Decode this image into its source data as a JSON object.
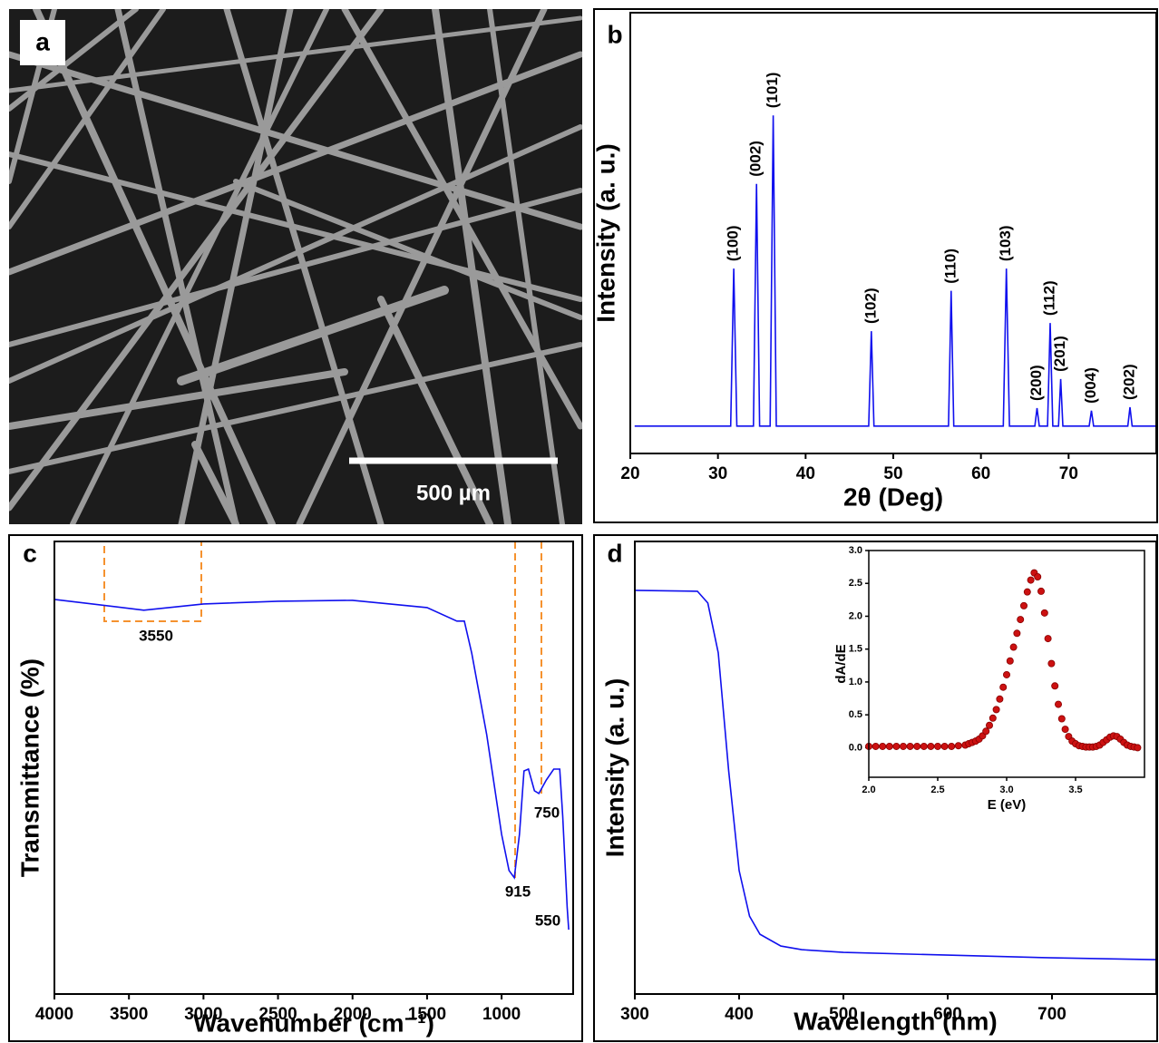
{
  "chart_data": [
    {
      "type": "image",
      "panel_label": "a",
      "scale_bar_label": "500 µm"
    },
    {
      "type": "line",
      "panel_label": "b",
      "xlabel": "2θ (Deg)",
      "ylabel": "Intensity (a. u.)",
      "color": "#1010ee",
      "x": [
        20.5,
        31.45,
        31.8,
        32.15,
        34.05,
        34.4,
        34.75,
        35.95,
        36.3,
        36.65,
        47.2,
        47.5,
        47.8,
        56.3,
        56.6,
        56.9,
        62.55,
        62.9,
        63.25,
        66.15,
        66.4,
        66.65,
        67.6,
        67.9,
        68.2,
        68.85,
        69.1,
        69.35,
        72.35,
        72.6,
        72.85,
        76.75,
        77.0,
        77.25,
        80
      ],
      "values": [
        6.4,
        6.4,
        43.2,
        6.4,
        6.4,
        63,
        6.4,
        6.4,
        79,
        6.4,
        6.4,
        28.6,
        6.4,
        6.4,
        38,
        6.4,
        6.4,
        43.2,
        6.4,
        6.4,
        10.6,
        6.4,
        6.4,
        30.5,
        6.4,
        6.4,
        17.4,
        6.4,
        6.4,
        10,
        6.4,
        6.4,
        10.8,
        6.4,
        6.4
      ],
      "xlim": [
        20,
        80
      ],
      "ylim": [
        0,
        103
      ],
      "xticks": [
        20,
        30,
        40,
        50,
        60,
        70
      ],
      "annotations": [
        {
          "text": "(100)",
          "x": 31.8
        },
        {
          "text": "(002)",
          "x": 34.4
        },
        {
          "text": "(101)",
          "x": 36.3
        },
        {
          "text": "(102)",
          "x": 47.5
        },
        {
          "text": "(110)",
          "x": 56.6
        },
        {
          "text": "(103)",
          "x": 62.9
        },
        {
          "text": "(200)",
          "x": 66.4
        },
        {
          "text": "(112)",
          "x": 67.9
        },
        {
          "text": "(201)",
          "x": 69.1
        },
        {
          "text": "(004)",
          "x": 72.6
        },
        {
          "text": "(202)",
          "x": 77.0
        }
      ]
    },
    {
      "type": "line",
      "panel_label": "c",
      "xlabel": "Wavenumber (cm⁻¹)",
      "ylabel": "Transmittance (%)",
      "color": "#1010ee",
      "x": [
        4000,
        3400,
        3000,
        2500,
        2000,
        1500,
        1300,
        1250,
        1200,
        1100,
        1000,
        950,
        915,
        880,
        850,
        820,
        780,
        750,
        700,
        650,
        610,
        590,
        560,
        550
      ],
      "values": [
        87.2,
        84.8,
        86.2,
        86.8,
        87,
        85.4,
        82.4,
        82.4,
        75.3,
        57.3,
        35.3,
        27.3,
        25.7,
        35.3,
        49.3,
        49.7,
        44.9,
        44.3,
        47.3,
        49.7,
        49.7,
        39.3,
        19.2,
        14.2
      ],
      "xlim": [
        4000,
        520
      ],
      "ylim": [
        0,
        100
      ],
      "xticks": [
        4000,
        3500,
        3000,
        2500,
        2000,
        1500,
        1000
      ],
      "annotations": [
        {
          "text": "3550"
        },
        {
          "text": "915"
        },
        {
          "text": "750"
        },
        {
          "text": "550"
        }
      ]
    },
    {
      "type": "line",
      "panel_label": "d",
      "xlabel": "Wavelength (nm)",
      "ylabel": "Intensity (a. u.)",
      "color": "#1010ee",
      "x": [
        300,
        360,
        370,
        380,
        390,
        400,
        410,
        420,
        440,
        460,
        500,
        600,
        700,
        800
      ],
      "values": [
        89.2,
        89,
        86.4,
        75.4,
        49.3,
        27.3,
        17.2,
        13.2,
        10.6,
        9.8,
        9.2,
        8.6,
        8,
        7.6
      ],
      "xlim": [
        300,
        800
      ],
      "ylim": [
        0,
        100
      ],
      "xticks": [
        300,
        400,
        500,
        600,
        700
      ],
      "inset": {
        "type": "scatter",
        "xlabel": "E (eV)",
        "ylabel": "dA/dE",
        "color": "#cc1111",
        "x": [
          2.0,
          2.05,
          2.1,
          2.15,
          2.2,
          2.25,
          2.3,
          2.35,
          2.4,
          2.45,
          2.5,
          2.55,
          2.6,
          2.65,
          2.7,
          2.725,
          2.75,
          2.775,
          2.8,
          2.825,
          2.85,
          2.875,
          2.9,
          2.925,
          2.95,
          2.975,
          3.0,
          3.025,
          3.05,
          3.075,
          3.1,
          3.125,
          3.15,
          3.175,
          3.2,
          3.225,
          3.25,
          3.275,
          3.3,
          3.325,
          3.35,
          3.375,
          3.4,
          3.425,
          3.45,
          3.475,
          3.5,
          3.525,
          3.55,
          3.575,
          3.6,
          3.625,
          3.65,
          3.675,
          3.7,
          3.725,
          3.75,
          3.775,
          3.8,
          3.825,
          3.85,
          3.875,
          3.9,
          3.925,
          3.95
        ],
        "values": [
          0.02,
          0.02,
          0.02,
          0.02,
          0.02,
          0.02,
          0.02,
          0.02,
          0.02,
          0.02,
          0.02,
          0.02,
          0.02,
          0.03,
          0.04,
          0.06,
          0.08,
          0.1,
          0.13,
          0.18,
          0.25,
          0.34,
          0.45,
          0.58,
          0.74,
          0.92,
          1.11,
          1.32,
          1.53,
          1.74,
          1.95,
          2.16,
          2.37,
          2.55,
          2.66,
          2.6,
          2.38,
          2.05,
          1.66,
          1.28,
          0.94,
          0.66,
          0.44,
          0.28,
          0.17,
          0.1,
          0.06,
          0.03,
          0.02,
          0.01,
          0.01,
          0.01,
          0.02,
          0.04,
          0.08,
          0.12,
          0.16,
          0.18,
          0.17,
          0.13,
          0.08,
          0.04,
          0.02,
          0.01,
          0.0
        ],
        "xlim": [
          2.0,
          4.0
        ],
        "ylim": [
          -0.45,
          3.0
        ],
        "xticks": [
          {
            "value": 2,
            "label": "2.0"
          },
          {
            "value": 2.5,
            "label": "2.5"
          },
          {
            "value": 3,
            "label": "3.0"
          },
          {
            "value": 3.5,
            "label": "3.5"
          }
        ],
        "yticks": [
          {
            "value": 0,
            "label": "0.0"
          },
          {
            "value": 0.5,
            "label": "0.5"
          },
          {
            "value": 1,
            "label": "1.0"
          },
          {
            "value": 1.5,
            "label": "1.5"
          },
          {
            "value": 2,
            "label": "2.0"
          },
          {
            "value": 2.5,
            "label": "2.5"
          },
          {
            "value": 3,
            "label": "3.0"
          }
        ]
      }
    }
  ]
}
